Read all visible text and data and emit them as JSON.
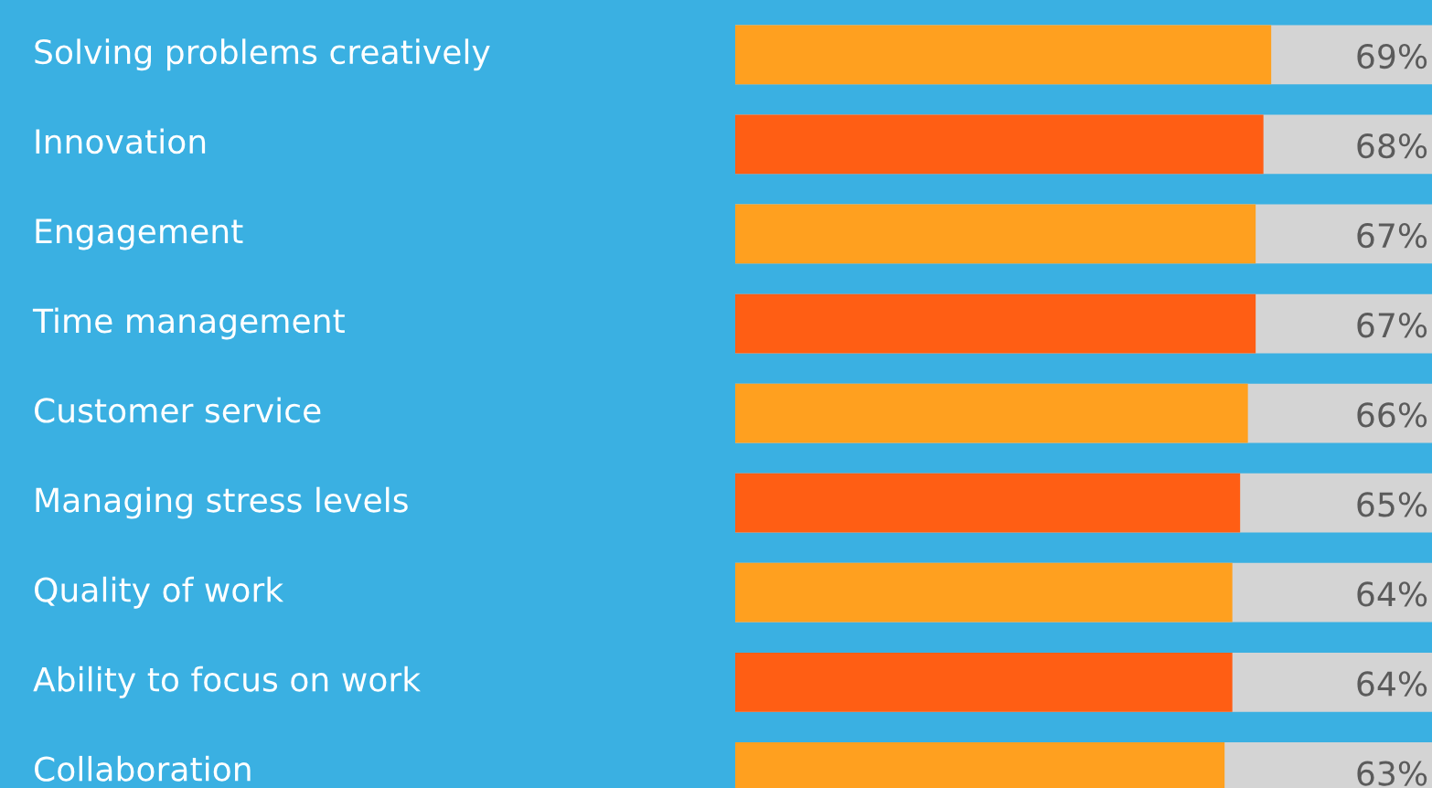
{
  "chart_data": {
    "type": "bar",
    "orientation": "horizontal",
    "value_labels": [
      "69%",
      "68%",
      "67%",
      "67%",
      "66%",
      "65%",
      "64%",
      "64%",
      "63%"
    ],
    "categories": [
      "Solving problems creatively",
      "Innovation",
      "Engagement",
      "Time management",
      "Customer service",
      "Managing stress levels",
      "Quality of work",
      "Ability to focus on work",
      "Collaboration"
    ],
    "values": [
      69,
      68,
      67,
      67,
      66,
      65,
      64,
      64,
      63
    ],
    "colors": [
      "#ffa01f",
      "#ff5e14",
      "#ffa01f",
      "#ff5e14",
      "#ffa01f",
      "#ff5e14",
      "#ffa01f",
      "#ff5e14",
      "#ffa01f"
    ],
    "legend": false
  }
}
